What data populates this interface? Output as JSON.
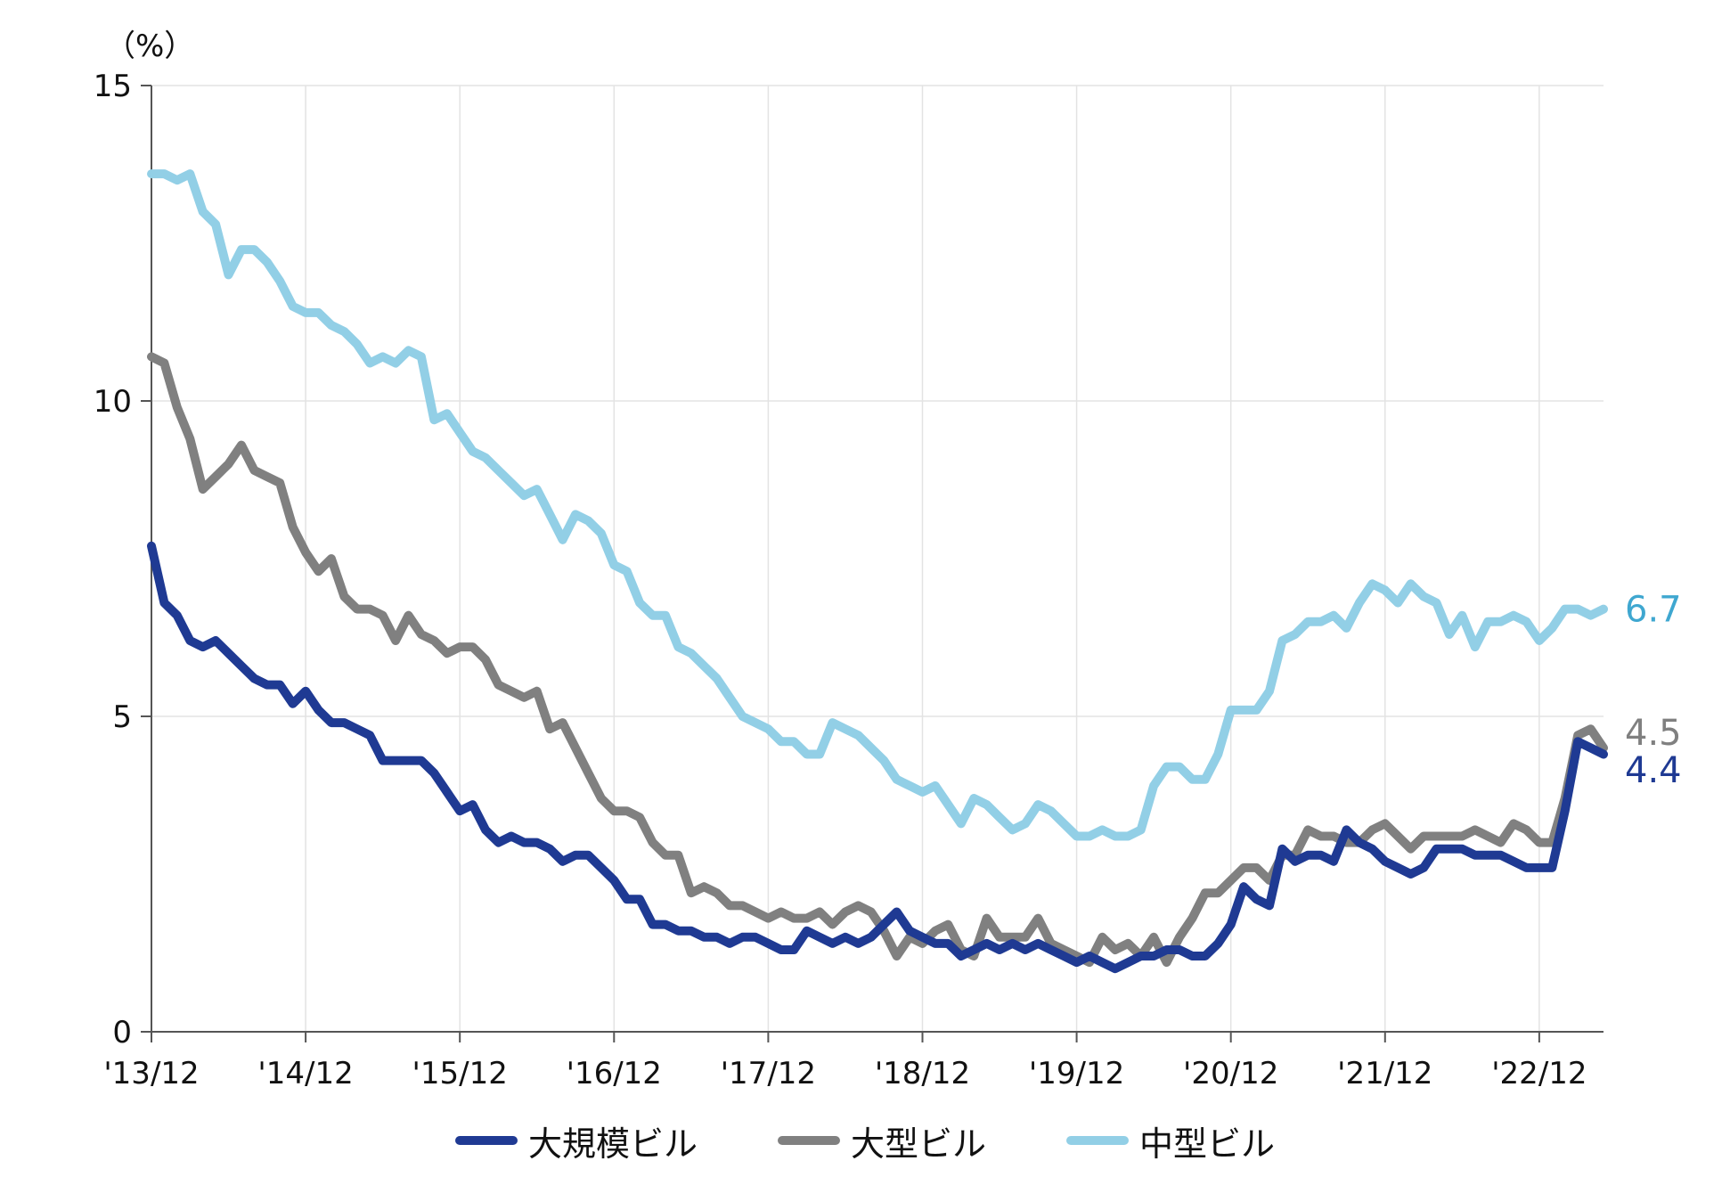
{
  "chart_data": {
    "type": "line",
    "title": "",
    "unit_label": "（%）",
    "xlabel": "",
    "ylabel": "",
    "ylim": [
      0,
      15
    ],
    "yticks": [
      0,
      5,
      10,
      15
    ],
    "grid": true,
    "legend_position": "bottom",
    "x_tick_labels": [
      "'13/12",
      "'14/12",
      "'15/12",
      "'16/12",
      "'17/12",
      "'18/12",
      "'19/12",
      "'20/12",
      "'21/12",
      "'22/12"
    ],
    "x_start": "2013/12",
    "x_end": "2023/06",
    "series": [
      {
        "name": "中型ビル",
        "color": "#92cfe6",
        "end_label": "6.7",
        "end_label_color": "#3fa7d0",
        "values": [
          13.6,
          13.6,
          13.5,
          13.6,
          13.0,
          12.8,
          12.0,
          12.4,
          12.4,
          12.2,
          11.9,
          11.5,
          11.4,
          11.4,
          11.2,
          11.1,
          10.9,
          10.6,
          10.7,
          10.6,
          10.8,
          10.7,
          9.7,
          9.8,
          9.5,
          9.2,
          9.1,
          8.9,
          8.7,
          8.5,
          8.6,
          8.2,
          7.8,
          8.2,
          8.1,
          7.9,
          7.4,
          7.3,
          6.8,
          6.6,
          6.6,
          6.1,
          6.0,
          5.8,
          5.6,
          5.3,
          5.0,
          4.9,
          4.8,
          4.6,
          4.6,
          4.4,
          4.4,
          4.9,
          4.8,
          4.7,
          4.5,
          4.3,
          4.0,
          3.9,
          3.8,
          3.9,
          3.6,
          3.3,
          3.7,
          3.6,
          3.4,
          3.2,
          3.3,
          3.6,
          3.5,
          3.3,
          3.1,
          3.1,
          3.2,
          3.1,
          3.1,
          3.2,
          3.9,
          4.2,
          4.2,
          4.0,
          4.0,
          4.4,
          5.1,
          5.1,
          5.1,
          5.4,
          6.2,
          6.3,
          6.5,
          6.5,
          6.6,
          6.4,
          6.8,
          7.1,
          7.0,
          6.8,
          7.1,
          6.9,
          6.8,
          6.3,
          6.6,
          6.1,
          6.5,
          6.5,
          6.6,
          6.5,
          6.2,
          6.4,
          6.7,
          6.7,
          6.6,
          6.7
        ]
      },
      {
        "name": "大型ビル",
        "color": "#808080",
        "end_label": "4.5",
        "end_label_color": "#808080",
        "values": [
          10.7,
          10.6,
          9.9,
          9.4,
          8.6,
          8.8,
          9.0,
          9.3,
          8.9,
          8.8,
          8.7,
          8.0,
          7.6,
          7.3,
          7.5,
          6.9,
          6.7,
          6.7,
          6.6,
          6.2,
          6.6,
          6.3,
          6.2,
          6.0,
          6.1,
          6.1,
          5.9,
          5.5,
          5.4,
          5.3,
          5.4,
          4.8,
          4.9,
          4.5,
          4.1,
          3.7,
          3.5,
          3.5,
          3.4,
          3.0,
          2.8,
          2.8,
          2.2,
          2.3,
          2.2,
          2.0,
          2.0,
          1.9,
          1.8,
          1.9,
          1.8,
          1.8,
          1.9,
          1.7,
          1.9,
          2.0,
          1.9,
          1.6,
          1.2,
          1.5,
          1.4,
          1.6,
          1.7,
          1.3,
          1.2,
          1.8,
          1.5,
          1.5,
          1.5,
          1.8,
          1.4,
          1.3,
          1.2,
          1.1,
          1.5,
          1.3,
          1.4,
          1.2,
          1.5,
          1.1,
          1.5,
          1.8,
          2.2,
          2.2,
          2.4,
          2.6,
          2.6,
          2.4,
          2.8,
          2.8,
          3.2,
          3.1,
          3.1,
          3.0,
          3.0,
          3.2,
          3.3,
          3.1,
          2.9,
          3.1,
          3.1,
          3.1,
          3.1,
          3.2,
          3.1,
          3.0,
          3.3,
          3.2,
          3.0,
          3.0,
          3.7,
          4.7,
          4.8,
          4.5
        ]
      },
      {
        "name": "大規模ビル",
        "color": "#1f3a93",
        "end_label": "4.4",
        "end_label_color": "#1f3a93",
        "values": [
          7.7,
          6.8,
          6.6,
          6.2,
          6.1,
          6.2,
          6.0,
          5.8,
          5.6,
          5.5,
          5.5,
          5.2,
          5.4,
          5.1,
          4.9,
          4.9,
          4.8,
          4.7,
          4.3,
          4.3,
          4.3,
          4.3,
          4.1,
          3.8,
          3.5,
          3.6,
          3.2,
          3.0,
          3.1,
          3.0,
          3.0,
          2.9,
          2.7,
          2.8,
          2.8,
          2.6,
          2.4,
          2.1,
          2.1,
          1.7,
          1.7,
          1.6,
          1.6,
          1.5,
          1.5,
          1.4,
          1.5,
          1.5,
          1.4,
          1.3,
          1.3,
          1.6,
          1.5,
          1.4,
          1.5,
          1.4,
          1.5,
          1.7,
          1.9,
          1.6,
          1.5,
          1.4,
          1.4,
          1.2,
          1.3,
          1.4,
          1.3,
          1.4,
          1.3,
          1.4,
          1.3,
          1.2,
          1.1,
          1.2,
          1.1,
          1.0,
          1.1,
          1.2,
          1.2,
          1.3,
          1.3,
          1.2,
          1.2,
          1.4,
          1.7,
          2.3,
          2.1,
          2.0,
          2.9,
          2.7,
          2.8,
          2.8,
          2.7,
          3.2,
          3.0,
          2.9,
          2.7,
          2.6,
          2.5,
          2.6,
          2.9,
          2.9,
          2.9,
          2.8,
          2.8,
          2.8,
          2.7,
          2.6,
          2.6,
          2.6,
          3.5,
          4.6,
          4.5,
          4.4
        ]
      }
    ]
  },
  "legend": {
    "items": [
      {
        "label": "大規模ビル",
        "color": "#1f3a93"
      },
      {
        "label": "大型ビル",
        "color": "#808080"
      },
      {
        "label": "中型ビル",
        "color": "#92cfe6"
      }
    ]
  }
}
